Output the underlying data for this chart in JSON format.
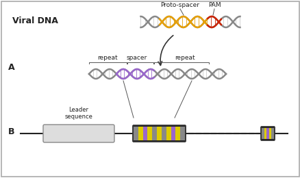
{
  "title": "",
  "background_color": "#ffffff",
  "border_color": "#aaaaaa",
  "viral_dna_label": "Viral DNA",
  "proto_spacer_label": "Proto-spacer",
  "pam_label": "PAM",
  "section_a_label": "A",
  "section_b_label": "B",
  "repeat_label": "repeat",
  "spacer_label": "spacer",
  "leader_label": "Leader\nsequence",
  "dna_gray": "#888888",
  "dna_gold": "#e8a000",
  "dna_red": "#cc2200",
  "dna_purple": "#9966cc",
  "dna_yellow": "#ddcc00",
  "arrow_color": "#333333",
  "line_color": "#222222",
  "text_color": "#222222",
  "leader_fill": "#dddddd",
  "leader_edge": "#888888"
}
